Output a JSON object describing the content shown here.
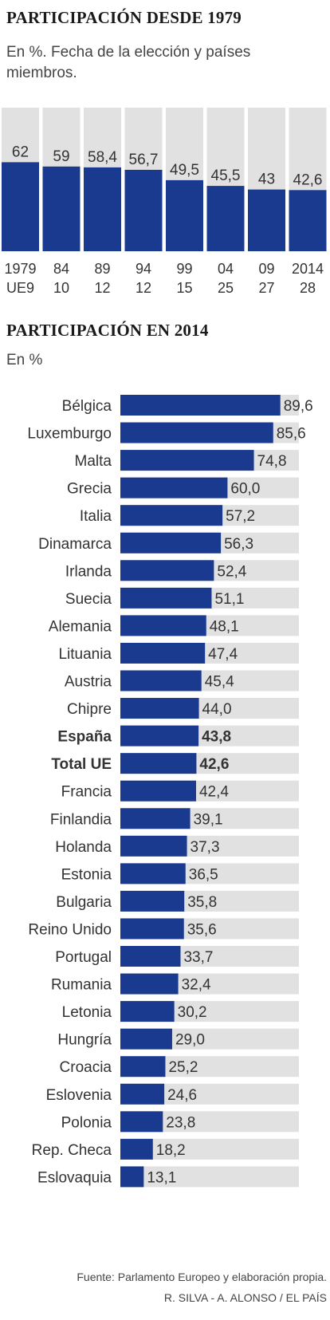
{
  "colors": {
    "bar": "#1a3a8f",
    "track": "#e1e1e1",
    "text": "#333333"
  },
  "chart_data": [
    {
      "type": "bar",
      "title": "PARTICIPACIÓN DESDE 1979",
      "subtitle": "En %. Fecha de la elección y países miembros.",
      "categories": [
        "1979",
        "84",
        "89",
        "94",
        "99",
        "04",
        "09",
        "2014"
      ],
      "category_sublabels": [
        "UE9",
        "10",
        "12",
        "12",
        "15",
        "25",
        "27",
        "28"
      ],
      "values": [
        62,
        59,
        58.4,
        56.7,
        49.5,
        45.5,
        43,
        42.6
      ],
      "value_labels": [
        "62",
        "59",
        "58,4",
        "56,7",
        "49,5",
        "45,5",
        "43",
        "42,6"
      ],
      "ylim": [
        0,
        100
      ],
      "xlabel": "",
      "ylabel": ""
    },
    {
      "type": "bar",
      "orientation": "horizontal",
      "title": "PARTICIPACIÓN  EN 2014",
      "subtitle": "En %",
      "categories": [
        "Bélgica",
        "Luxemburgo",
        "Malta",
        "Grecia",
        "Italia",
        "Dinamarca",
        "Irlanda",
        "Suecia",
        "Alemania",
        "Lituania",
        "Austria",
        "Chipre",
        "España",
        "Total UE",
        "Francia",
        "Finlandia",
        "Holanda",
        "Estonia",
        "Bulgaria",
        "Reino Unido",
        "Portugal",
        "Rumania",
        "Letonia",
        "Hungría",
        "Croacia",
        "Eslovenia",
        "Polonia",
        "Rep. Checa",
        "Eslovaquia"
      ],
      "values": [
        89.6,
        85.6,
        74.8,
        60.0,
        57.2,
        56.3,
        52.4,
        51.1,
        48.1,
        47.4,
        45.4,
        44.0,
        43.8,
        42.6,
        42.4,
        39.1,
        37.3,
        36.5,
        35.8,
        35.6,
        33.7,
        32.4,
        30.2,
        29.0,
        25.2,
        24.6,
        23.8,
        18.2,
        13.1
      ],
      "value_labels": [
        "89,6",
        "85,6",
        "74,8",
        "60,0",
        "57,2",
        "56,3",
        "52,4",
        "51,1",
        "48,1",
        "47,4",
        "45,4",
        "44,0",
        "43,8",
        "42,6",
        "42,4",
        "39,1",
        "37,3",
        "36,5",
        "35,8",
        "35,6",
        "33,7",
        "32,4",
        "30,2",
        "29,0",
        "25,2",
        "24,6",
        "23,8",
        "18,2",
        "13,1"
      ],
      "highlighted": [
        "España",
        "Total UE"
      ],
      "xlim": [
        0,
        100
      ],
      "xlabel": "",
      "ylabel": ""
    }
  ],
  "source": {
    "line1": "Fuente: Parlamento Europeo y elaboración propia.",
    "line2": "R. SILVA - A. ALONSO / EL PAÍS"
  }
}
